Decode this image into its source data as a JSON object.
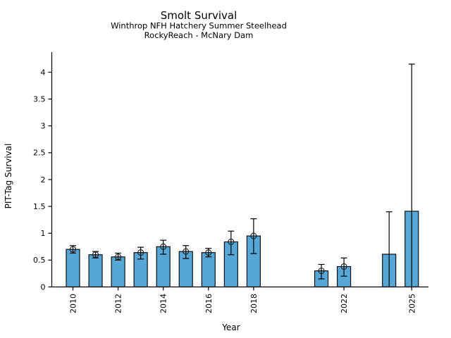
{
  "chart_data": {
    "type": "bar",
    "title": "Smolt Survival",
    "subtitle_line1": "Winthrop NFH Hatchery Summer Steelhead",
    "subtitle_line2": "RockyReach - McNary Dam",
    "xlabel": "Year",
    "ylabel": "PIT-Tag Survival",
    "ylim": [
      0,
      4.37
    ],
    "yticks": [
      "0",
      "0.5",
      "1",
      "1.5",
      "2",
      "2.5",
      "3",
      "3.5",
      "4"
    ],
    "xticks": [
      "2010",
      "2012",
      "2014",
      "2016",
      "2018",
      "2022",
      "2025"
    ],
    "grid": false,
    "legend": false,
    "error_bars": "95% CI whiskers with cap; point estimate shown as circle-cross marker on 2010-2022 bars",
    "missing_years": [
      2019,
      2020,
      2023
    ],
    "colors": {
      "bar_fill": "#56A6D6",
      "bar_edge": "#000000",
      "error_bar": "#000000",
      "marker": "#1A1A1A",
      "background": "#FFFFFF",
      "text": "#000000"
    },
    "bars": [
      {
        "year": 2010,
        "survival": 0.7,
        "ci_low": 0.63,
        "ci_high": 0.77,
        "marker": true
      },
      {
        "year": 2011,
        "survival": 0.6,
        "ci_low": 0.54,
        "ci_high": 0.66,
        "marker": true
      },
      {
        "year": 2012,
        "survival": 0.56,
        "ci_low": 0.5,
        "ci_high": 0.63,
        "marker": true
      },
      {
        "year": 2013,
        "survival": 0.64,
        "ci_low": 0.52,
        "ci_high": 0.74,
        "marker": true
      },
      {
        "year": 2014,
        "survival": 0.75,
        "ci_low": 0.61,
        "ci_high": 0.87,
        "marker": true
      },
      {
        "year": 2015,
        "survival": 0.66,
        "ci_low": 0.53,
        "ci_high": 0.77,
        "marker": true
      },
      {
        "year": 2016,
        "survival": 0.64,
        "ci_low": 0.56,
        "ci_high": 0.72,
        "marker": true
      },
      {
        "year": 2017,
        "survival": 0.84,
        "ci_low": 0.6,
        "ci_high": 1.04,
        "marker": true
      },
      {
        "year": 2018,
        "survival": 0.95,
        "ci_low": 0.62,
        "ci_high": 1.27,
        "marker": true
      },
      {
        "year": 2021,
        "survival": 0.3,
        "ci_low": 0.15,
        "ci_high": 0.42,
        "marker": true
      },
      {
        "year": 2022,
        "survival": 0.38,
        "ci_low": 0.2,
        "ci_high": 0.54,
        "marker": true
      },
      {
        "year": 2024,
        "survival": 0.61,
        "ci_low": 0.0,
        "ci_high": 1.4,
        "marker": false
      },
      {
        "year": 2025,
        "survival": 1.41,
        "ci_low": 0.0,
        "ci_high": 4.15,
        "marker": false
      }
    ]
  }
}
